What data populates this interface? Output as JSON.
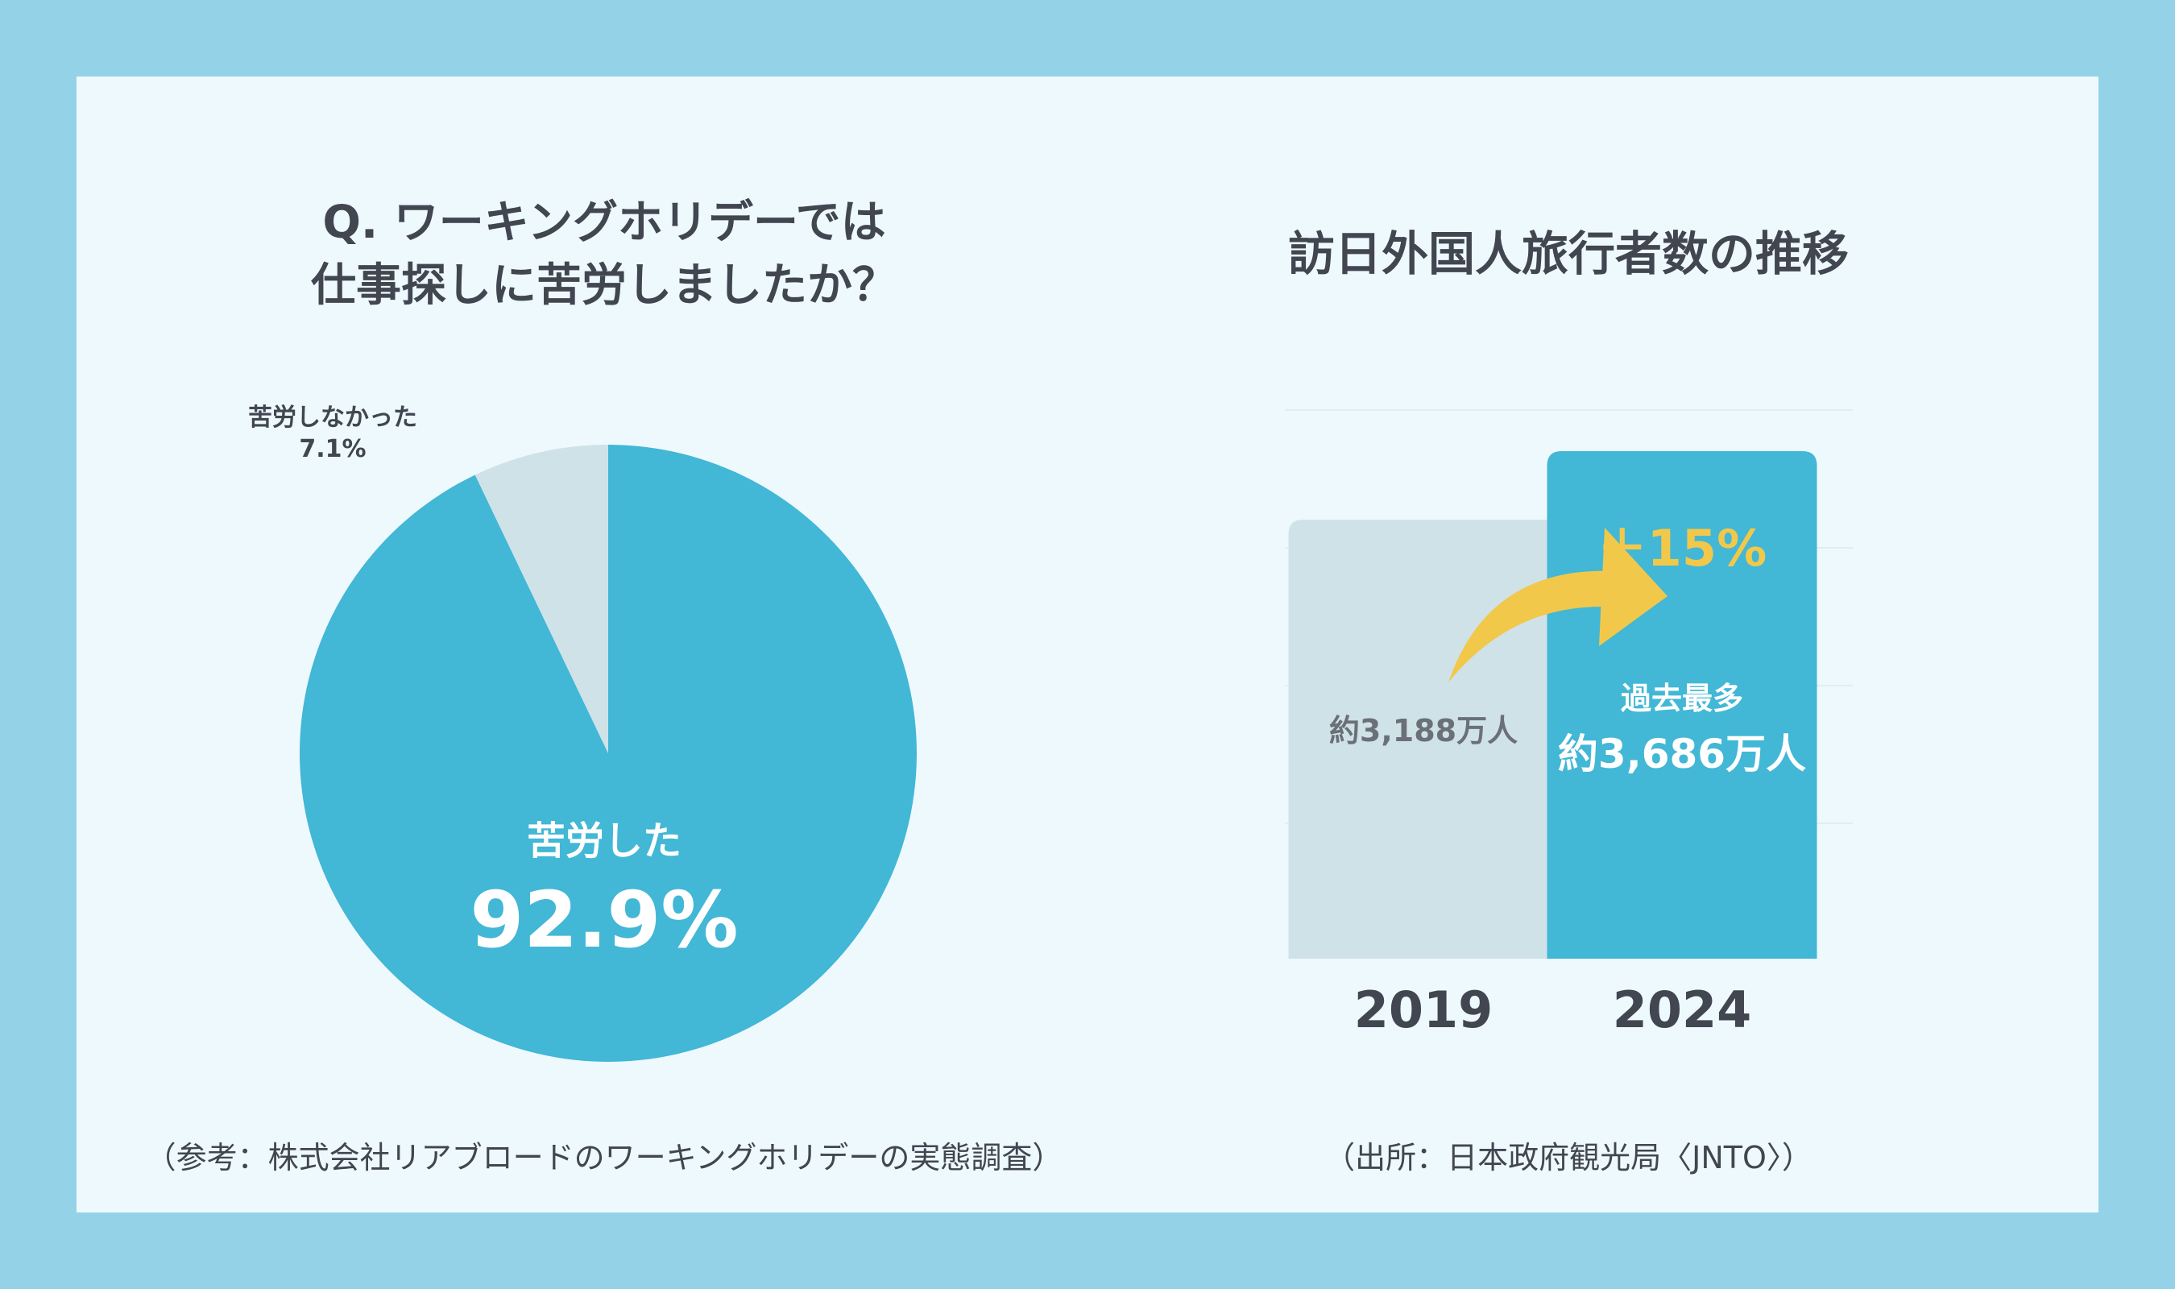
{
  "colors": {
    "frame": "#94d3e7",
    "card": "#eef9fe",
    "accent_blue": "#42b7d6",
    "muted": "#cfe2e8",
    "text_dark": "#414650",
    "arrow": "#f2c84b",
    "white": "#ffffff"
  },
  "chart_data": [
    {
      "type": "pie",
      "title_lines": [
        "Q. ワーキングホリデーでは",
        "仕事探しに苦労しましたか？"
      ],
      "slices": [
        {
          "label": "苦労した",
          "value": 92.9,
          "value_label": "92.9%",
          "color": "#42b7d6"
        },
        {
          "label": "苦労しなかった",
          "value": 7.1,
          "value_label": "7.1%",
          "color": "#cfe2e8"
        }
      ],
      "source": "（参考：株式会社リアブロードのワーキングホリデーの実態調査）"
    },
    {
      "type": "bar",
      "title": "訪日外国人旅行者数の推移",
      "categories": [
        "2019",
        "2024"
      ],
      "values": [
        3188,
        3686
      ],
      "value_labels": [
        "約3,188万人",
        "約3,686万人"
      ],
      "ylim": [
        0,
        3686
      ],
      "grid": true,
      "bar_colors": [
        "#cfe2e8",
        "#42b7d6"
      ],
      "annotations": {
        "highlight": "過去最多",
        "growth": "＋15%"
      },
      "source": "（出所：日本政府観光局〈JNTO〉）"
    }
  ]
}
